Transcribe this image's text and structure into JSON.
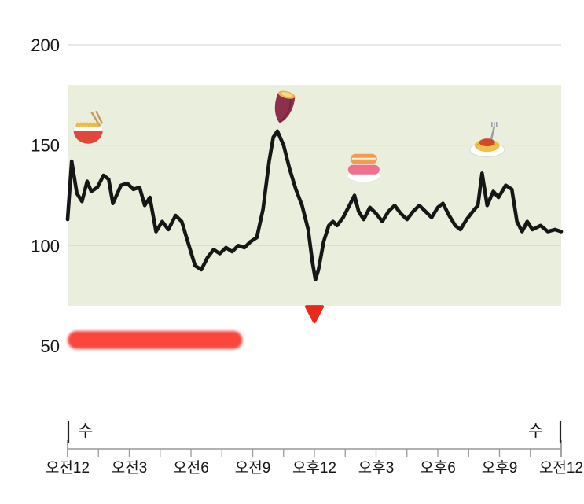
{
  "chart_data": {
    "type": "line",
    "title": "",
    "xlabel": "",
    "ylabel": "",
    "ylim": [
      50,
      200
    ],
    "y_ticks": [
      200,
      150,
      100,
      50
    ],
    "y_gridlines": [
      200,
      150,
      100
    ],
    "x_tick_hours": [
      0,
      3,
      6,
      9,
      12,
      15,
      18,
      21,
      24
    ],
    "x_tick_labels": [
      "오전12",
      "오전3",
      "오전6",
      "오전9",
      "오후12",
      "오후3",
      "오후6",
      "오후9",
      "오전12"
    ],
    "weekday_left": "수",
    "weekday_right": "수",
    "grid": "horizontal-only",
    "legend": "none",
    "target_band": {
      "low": 70,
      "high": 180,
      "color": "#e9efdc"
    },
    "series": [
      {
        "name": "glucose",
        "color": "#161616",
        "points": [
          [
            0,
            113
          ],
          [
            0.2,
            142
          ],
          [
            0.45,
            126
          ],
          [
            0.7,
            122
          ],
          [
            0.95,
            132
          ],
          [
            1.15,
            127
          ],
          [
            1.45,
            129
          ],
          [
            1.75,
            135
          ],
          [
            2.0,
            133
          ],
          [
            2.2,
            121
          ],
          [
            2.6,
            130
          ],
          [
            2.9,
            131
          ],
          [
            3.2,
            128
          ],
          [
            3.5,
            129
          ],
          [
            3.75,
            120
          ],
          [
            4.0,
            124
          ],
          [
            4.3,
            107
          ],
          [
            4.6,
            112
          ],
          [
            4.9,
            108
          ],
          [
            5.25,
            115
          ],
          [
            5.55,
            112
          ],
          [
            5.9,
            100
          ],
          [
            6.2,
            90
          ],
          [
            6.5,
            88
          ],
          [
            6.8,
            94
          ],
          [
            7.1,
            98
          ],
          [
            7.4,
            96
          ],
          [
            7.7,
            99
          ],
          [
            8.0,
            97
          ],
          [
            8.3,
            100
          ],
          [
            8.6,
            99
          ],
          [
            8.9,
            102
          ],
          [
            9.2,
            104
          ],
          [
            9.5,
            118
          ],
          [
            9.8,
            142
          ],
          [
            10.0,
            154
          ],
          [
            10.2,
            157
          ],
          [
            10.5,
            150
          ],
          [
            10.8,
            138
          ],
          [
            11.1,
            128
          ],
          [
            11.4,
            120
          ],
          [
            11.7,
            108
          ],
          [
            11.9,
            92
          ],
          [
            12.05,
            83
          ],
          [
            12.2,
            88
          ],
          [
            12.45,
            102
          ],
          [
            12.7,
            110
          ],
          [
            12.9,
            112
          ],
          [
            13.1,
            110
          ],
          [
            13.4,
            114
          ],
          [
            13.7,
            120
          ],
          [
            13.95,
            125
          ],
          [
            14.15,
            117
          ],
          [
            14.4,
            113
          ],
          [
            14.7,
            119
          ],
          [
            15.0,
            116
          ],
          [
            15.3,
            112
          ],
          [
            15.6,
            117
          ],
          [
            15.9,
            120
          ],
          [
            16.2,
            116
          ],
          [
            16.5,
            113
          ],
          [
            16.8,
            117
          ],
          [
            17.1,
            120
          ],
          [
            17.4,
            117
          ],
          [
            17.7,
            114
          ],
          [
            18.0,
            119
          ],
          [
            18.25,
            121
          ],
          [
            18.55,
            115
          ],
          [
            18.85,
            110
          ],
          [
            19.1,
            108
          ],
          [
            19.4,
            113
          ],
          [
            19.7,
            117
          ],
          [
            19.95,
            120
          ],
          [
            20.15,
            136
          ],
          [
            20.4,
            120
          ],
          [
            20.7,
            127
          ],
          [
            20.95,
            124
          ],
          [
            21.3,
            130
          ],
          [
            21.6,
            128
          ],
          [
            21.85,
            112
          ],
          [
            22.1,
            107
          ],
          [
            22.35,
            112
          ],
          [
            22.6,
            108
          ],
          [
            23.0,
            110
          ],
          [
            23.35,
            107
          ],
          [
            23.7,
            108
          ],
          [
            24,
            107
          ]
        ]
      }
    ],
    "annotations": {
      "food_events": [
        {
          "icon": "ramen",
          "hour": 1.0,
          "value": 158
        },
        {
          "icon": "sweet-potato",
          "hour": 10.5,
          "value": 169
        },
        {
          "icon": "sushi",
          "hour": 14.4,
          "value": 139
        },
        {
          "icon": "spaghetti",
          "hour": 20.4,
          "value": 151
        }
      ],
      "low_event_marker": {
        "shape": "triangle-down",
        "color": "#e8291c",
        "hour": 12.0,
        "value": 66
      },
      "highlight_bar": {
        "start_hour": 0,
        "end_hour": 8.5,
        "value": 53,
        "color": "#fa463d"
      }
    }
  }
}
